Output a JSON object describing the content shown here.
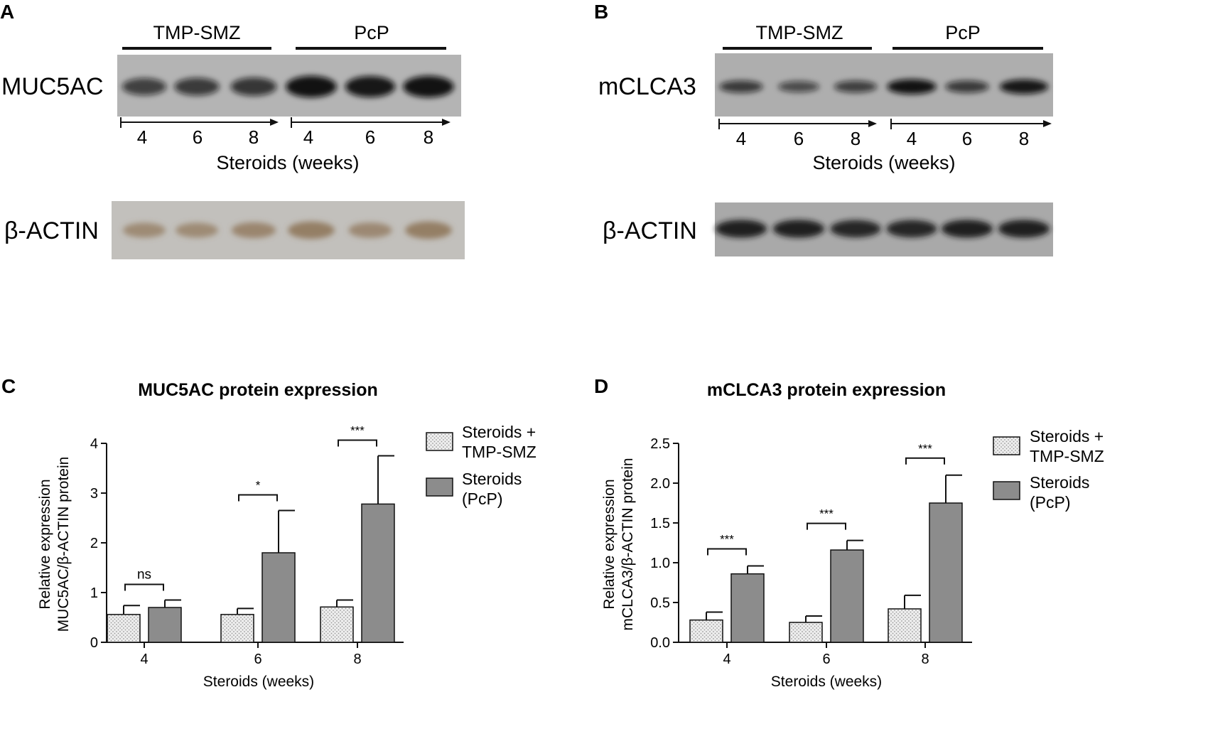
{
  "blots": [
    {
      "panel": "A",
      "groups": [
        "TMP-SMZ",
        "PcP"
      ],
      "protein": "MUC5AC",
      "loading": "β-ACTIN",
      "lanes": [
        "4",
        "6",
        "8",
        "4",
        "6",
        "8"
      ],
      "xlabel": "Steroids (weeks)",
      "protein_band_intensity": [
        0.55,
        0.6,
        0.65,
        0.95,
        0.9,
        0.95
      ],
      "actin_band_intensity": [
        0.45,
        0.45,
        0.55,
        0.7,
        0.5,
        0.7
      ],
      "actin_color": "#8a6e4f"
    },
    {
      "panel": "B",
      "groups": [
        "TMP-SMZ",
        "PcP"
      ],
      "protein": "mCLCA3",
      "loading": "β-ACTIN",
      "lanes": [
        "4",
        "6",
        "8",
        "4",
        "6",
        "8"
      ],
      "xlabel": "Steroids (weeks)",
      "protein_band_intensity": [
        0.6,
        0.45,
        0.55,
        0.95,
        0.6,
        0.9
      ],
      "actin_band_intensity": [
        0.9,
        0.9,
        0.85,
        0.85,
        0.9,
        0.9
      ],
      "actin_color": "#1a1a1a"
    }
  ],
  "chart_data": [
    {
      "panel": "C",
      "type": "bar",
      "title": "MUC5AC protein expression",
      "xlabel": "Steroids (weeks)",
      "ylabel_lines": [
        "Relative expression",
        "MUC5AC/β-ACTIN protein"
      ],
      "categories": [
        "4",
        "6",
        "8"
      ],
      "ylim": [
        0,
        4
      ],
      "yticks": [
        "0",
        "1",
        "2",
        "3",
        "4"
      ],
      "series": [
        {
          "name": "Steroids + TMP-SMZ",
          "values": [
            0.56,
            0.56,
            0.71
          ],
          "errors": [
            0.18,
            0.12,
            0.14
          ]
        },
        {
          "name": "Steroids (PcP)",
          "values": [
            0.7,
            1.8,
            2.78
          ],
          "errors": [
            0.15,
            0.85,
            0.97
          ]
        }
      ],
      "significance": [
        "ns",
        "*",
        "***"
      ],
      "legend_position": "right"
    },
    {
      "panel": "D",
      "type": "bar",
      "title": "mCLCA3 protein expression",
      "xlabel": "Steroids (weeks)",
      "ylabel_lines": [
        "Relative expression",
        "mCLCA3/β-ACTIN protein"
      ],
      "categories": [
        "4",
        "6",
        "8"
      ],
      "ylim": [
        0,
        2.5
      ],
      "yticks": [
        "0.0",
        "0.5",
        "1.0",
        "1.5",
        "2.0",
        "2.5"
      ],
      "series": [
        {
          "name": "Steroids + TMP-SMZ",
          "values": [
            0.28,
            0.25,
            0.42
          ],
          "errors": [
            0.1,
            0.08,
            0.17
          ]
        },
        {
          "name": "Steroids (PcP)",
          "values": [
            0.86,
            1.16,
            1.75
          ],
          "errors": [
            0.1,
            0.12,
            0.35
          ]
        }
      ],
      "significance": [
        "***",
        "***",
        "***"
      ],
      "legend_position": "right"
    }
  ],
  "legend": {
    "s1_line1": "Steroids +",
    "s1_line2": "TMP-SMZ",
    "s2_line1": "Steroids",
    "s2_line2": "(PcP)"
  },
  "colors": {
    "series1": "#e8e8e8",
    "series2": "#8c8c8c",
    "membrane": "#b4b4b4"
  }
}
